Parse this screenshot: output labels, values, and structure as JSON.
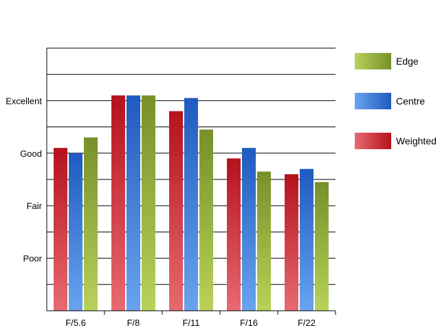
{
  "chart_data": {
    "type": "bar",
    "title": "",
    "xlabel": "",
    "ylabel": "",
    "categories": [
      "F/5.6",
      "F/8",
      "F/11",
      "F/16",
      "F/22"
    ],
    "y_tick_labels": [
      {
        "value": 2,
        "label": "Poor"
      },
      {
        "value": 4,
        "label": "Fair"
      },
      {
        "value": 6,
        "label": "Good"
      },
      {
        "value": 8,
        "label": "Excellent"
      }
    ],
    "ylim": [
      0,
      10
    ],
    "grid": true,
    "legend_position": "right",
    "series": [
      {
        "name": "Weighted",
        "color_dark": "#b5121b",
        "color_light": "#e86a72",
        "values": [
          6.2,
          8.2,
          7.6,
          5.8,
          5.2
        ]
      },
      {
        "name": "Centre",
        "color_dark": "#1f5bbf",
        "color_light": "#6aa3ee",
        "values": [
          6.0,
          8.2,
          8.1,
          6.2,
          5.4
        ]
      },
      {
        "name": "Edge",
        "color_dark": "#77902a",
        "color_light": "#b8d25a",
        "values": [
          6.6,
          8.2,
          6.9,
          5.3,
          4.9
        ]
      }
    ],
    "legend_order": [
      "Edge",
      "Centre",
      "Weighted"
    ]
  }
}
